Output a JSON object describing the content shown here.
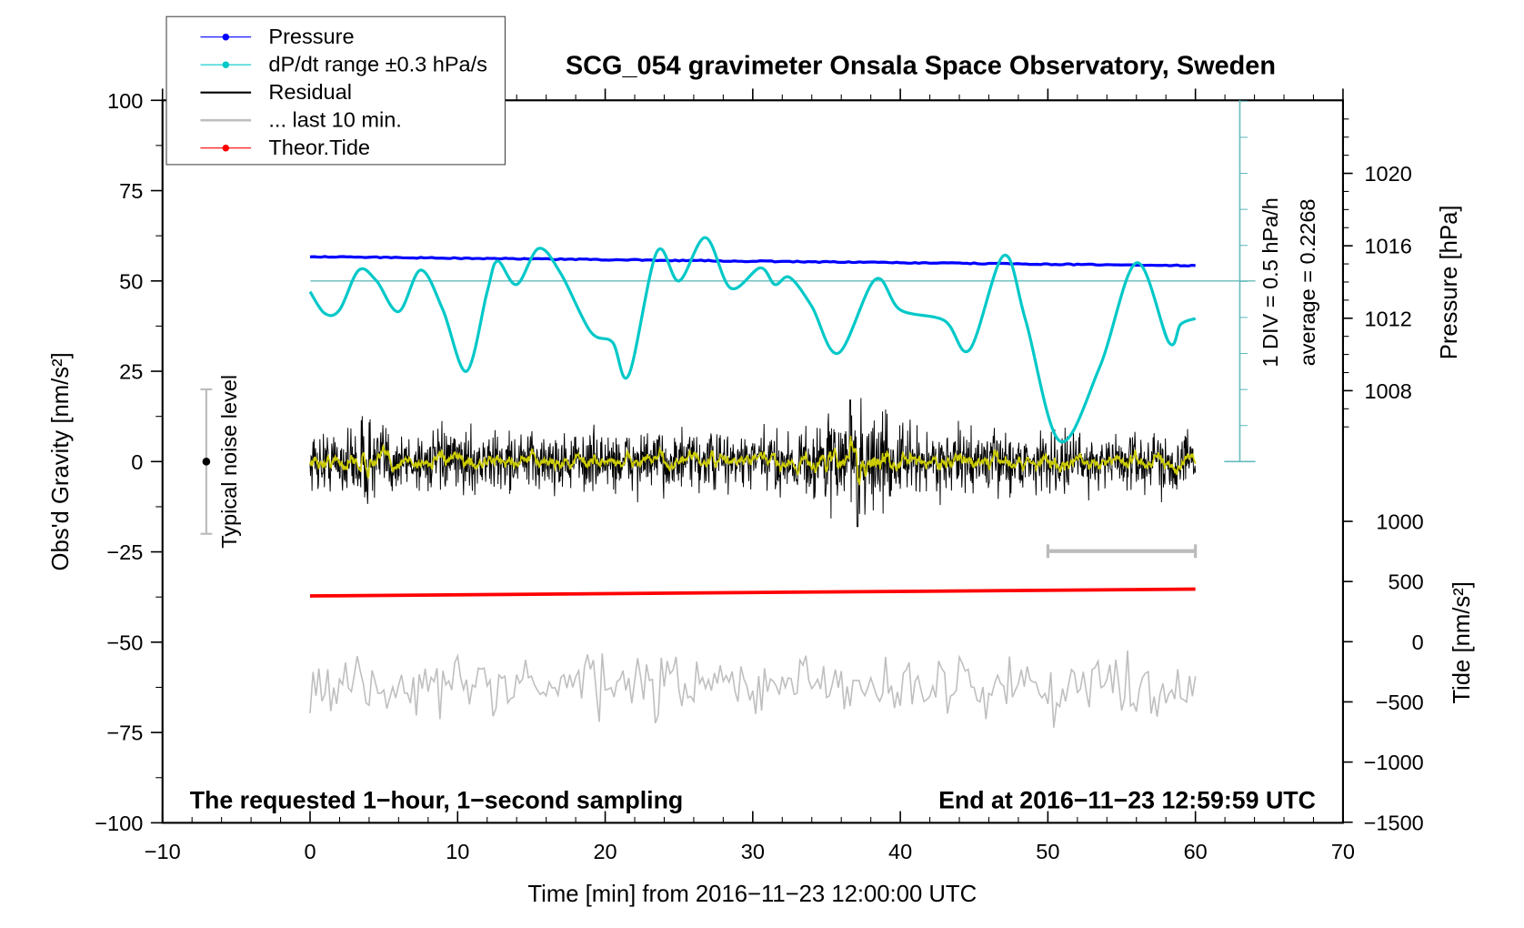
{
  "chart_data": {
    "type": "line",
    "title": "SCG_054 gravimeter Onsala Space Observatory, Sweden",
    "xlabel": "Time [min] from 2016−11−23 12:00:00 UTC",
    "ylabel": "Obs'd Gravity [nm/s²]",
    "ylabel_right_pressure": "Pressure [hPa]",
    "ylabel_right_tide": "Tide [nm/s²]",
    "xlim": [
      -10,
      70
    ],
    "ylim": [
      -100,
      100
    ],
    "xticks": [
      "−10",
      "0",
      "10",
      "20",
      "30",
      "40",
      "50",
      "60",
      "70"
    ],
    "xtick_values": [
      -10,
      0,
      10,
      20,
      30,
      40,
      50,
      60,
      70
    ],
    "yticks": [
      "100",
      "75",
      "50",
      "25",
      "0",
      "−25",
      "−50",
      "−75",
      "−100"
    ],
    "ytick_values": [
      100,
      75,
      50,
      25,
      0,
      -25,
      -50,
      -75,
      -100
    ],
    "pressure_ticks": [
      "1020",
      "1016",
      "1012",
      "1008"
    ],
    "pressure_tick_values": [
      1020,
      1016,
      1012,
      1008
    ],
    "tide_ticks": [
      "1000",
      "500",
      "0",
      "−500",
      "−1000",
      "−1500"
    ],
    "tide_tick_values": [
      1000,
      500,
      0,
      -500,
      -1000,
      -1500
    ],
    "legend": {
      "placement": "top-left",
      "entries": [
        {
          "label": "Pressure",
          "color": "#0000ff"
        },
        {
          "label": "dP/dt range ±0.3 hPa/s",
          "color": "#00c8c8"
        },
        {
          "label": "Residual",
          "color": "#000000"
        },
        {
          "label": "... last 10 min.",
          "color": "#bfbfbf"
        },
        {
          "label": "Theor.Tide",
          "color": "#ff0000"
        }
      ]
    },
    "annotations": {
      "left_note": "The requested 1−hour, 1−second sampling",
      "right_note": "End at 2016−11−23 12:59:59 UTC",
      "div_note": "1 DIV = 0.5 hPa/h",
      "average_note": "average = 0.2268",
      "noise_label": "Typical noise level"
    },
    "series": {
      "pressure_hPa": {
        "t": [
          0,
          60
        ],
        "values": [
          1015.4,
          1014.9
        ]
      },
      "dPdt_plot_units": {
        "t": [
          0,
          1,
          2,
          3.3,
          4.5,
          6,
          7.5,
          9,
          10.6,
          12,
          12.7,
          14,
          15.5,
          17,
          19,
          20.5,
          21.6,
          23.5,
          25,
          26.8,
          28.5,
          30.5,
          31.5,
          32.5,
          34,
          35.8,
          38.3,
          40,
          43,
          44.7,
          47,
          48.5,
          50.8,
          53.5,
          56,
          58.2,
          59,
          60
        ],
        "values": [
          47,
          41,
          42,
          53,
          50,
          41.5,
          53,
          42,
          25,
          47,
          55.5,
          49,
          59,
          52,
          36,
          33,
          24,
          58,
          50,
          62,
          48,
          53.6,
          49,
          51,
          43,
          30,
          50.4,
          42,
          39,
          31,
          57,
          39,
          5.7,
          26,
          55,
          33,
          38,
          39.6
        ]
      },
      "dPdt_reference_level": 50,
      "tide_nm_s2": {
        "t": [
          0,
          60
        ],
        "values": [
          380,
          437
        ]
      },
      "residual": {
        "mean": 0,
        "typical_amplitude": 4,
        "max_spike": 17,
        "min_spike": -18
      },
      "last_10_min_offset": -62,
      "last_10_min_span": [
        50,
        60
      ],
      "noise_level_range": [
        -20,
        20
      ]
    }
  }
}
